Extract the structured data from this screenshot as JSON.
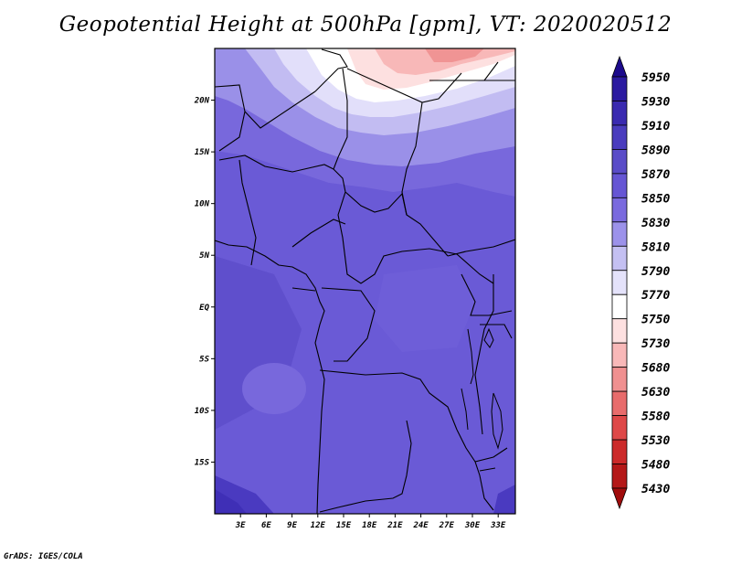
{
  "title": "Geopotential Height at 500hPa [gpm], VT: 2020020512",
  "credit": "GrADS: IGES/COLA",
  "map": {
    "lon_range": [
      0,
      35
    ],
    "lat_range": [
      -20,
      25
    ],
    "x_ticks": [
      "3E",
      "6E",
      "9E",
      "12E",
      "15E",
      "18E",
      "21E",
      "24E",
      "27E",
      "30E",
      "33E"
    ],
    "x_tick_values": [
      3,
      6,
      9,
      12,
      15,
      18,
      21,
      24,
      27,
      30,
      33
    ],
    "y_ticks": [
      "20N",
      "15N",
      "10N",
      "5N",
      "EQ",
      "5S",
      "10S",
      "15S"
    ],
    "y_tick_values": [
      20,
      15,
      10,
      5,
      0,
      -5,
      -10,
      -15
    ]
  },
  "colorbar": {
    "labels": [
      "5950",
      "5930",
      "5910",
      "5890",
      "5870",
      "5850",
      "5830",
      "5810",
      "5790",
      "5770",
      "5750",
      "5730",
      "5680",
      "5630",
      "5580",
      "5530",
      "5480",
      "5430"
    ],
    "colors": [
      "#1c0a8c",
      "#2b1aa0",
      "#3a2ab0",
      "#4a3cbe",
      "#5a4cc8",
      "#6656d4",
      "#7a6ade",
      "#9c92ea",
      "#c4c0f2",
      "#e4e2fa",
      "#ffffff",
      "#fde0e0",
      "#f8b8b8",
      "#f09090",
      "#e86c6c",
      "#de4848",
      "#cc2a2a",
      "#b41818",
      "#a00c0c"
    ]
  },
  "fill_colors": {
    "base": "#6a5ad6",
    "dark": "#5646c4",
    "darker": "#3f2fb6",
    "mid": "#7868dc",
    "light": "#9a90e8",
    "lighter": "#c2bcf2",
    "pale": "#e2dffa",
    "white": "#ffffff",
    "pink1": "#fde0e0",
    "pink2": "#f8b8b8",
    "pink3": "#f09494"
  }
}
